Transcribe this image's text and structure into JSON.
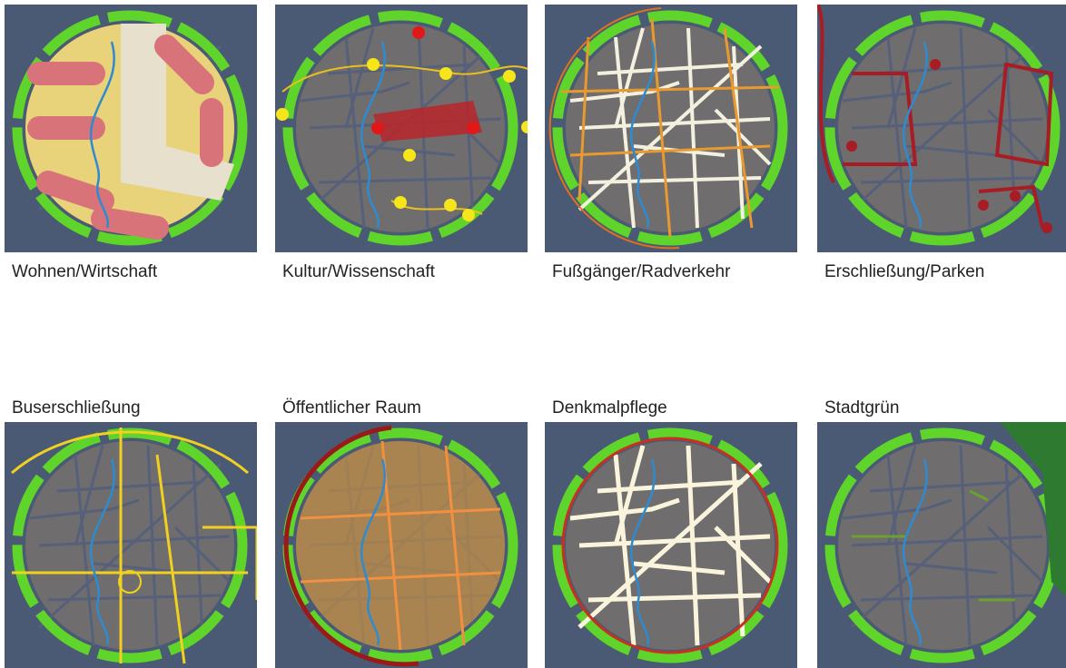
{
  "panels": [
    {
      "label": "Wohnen/Wirtschaft"
    },
    {
      "label": "Kultur/Wissenschaft"
    },
    {
      "label": "Fußgänger/Radverkehr"
    },
    {
      "label": "Erschließung/Parken"
    },
    {
      "label": "Buserschließung"
    },
    {
      "label": "Öffentlicher Raum"
    },
    {
      "label": "Denkmalpflege"
    },
    {
      "label": "Stadtgrün"
    }
  ]
}
